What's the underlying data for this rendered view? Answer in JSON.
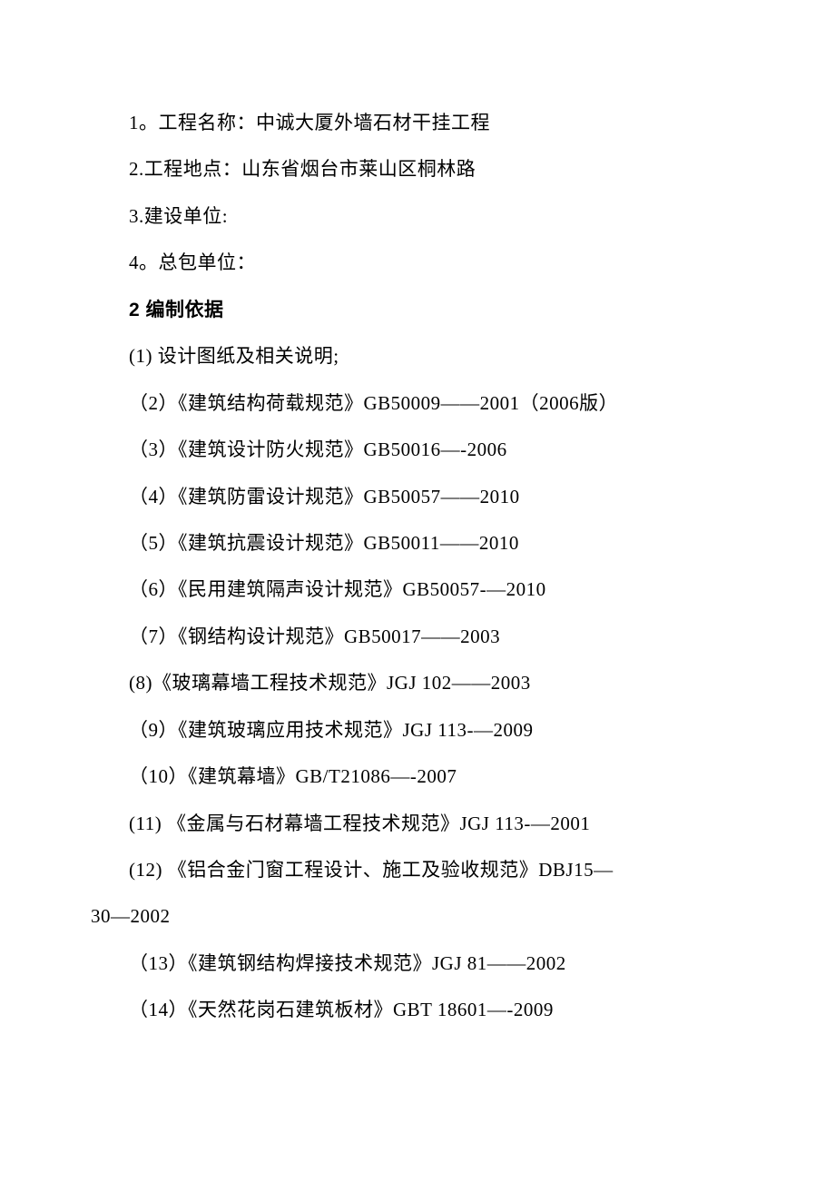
{
  "document": {
    "font_size": 21,
    "line_height": 2.45,
    "text_color": "#000000",
    "background_color": "#ffffff",
    "lines": [
      {
        "text": "1。工程名称：中诚大厦外墙石材干挂工程",
        "indent": true,
        "bold": false
      },
      {
        "text": "2.工程地点：山东省烟台市莱山区桐林路",
        "indent": true,
        "bold": false
      },
      {
        "text": "3.建设单位:",
        "indent": true,
        "bold": false
      },
      {
        "text": "4。总包单位：",
        "indent": true,
        "bold": false
      },
      {
        "text": "2 编制依据",
        "indent": true,
        "bold": true
      },
      {
        "text": "(1) 设计图纸及相关说明;",
        "indent": true,
        "bold": false
      },
      {
        "text": "（2）《建筑结构荷载规范》GB50009——2001（2006版）",
        "indent": true,
        "bold": false
      },
      {
        "text": "（3）《建筑设计防火规范》GB50016—-2006",
        "indent": true,
        "bold": false
      },
      {
        "text": "（4）《建筑防雷设计规范》GB50057——2010",
        "indent": true,
        "bold": false
      },
      {
        "text": "（5）《建筑抗震设计规范》GB50011——2010",
        "indent": true,
        "bold": false
      },
      {
        "text": "（6）《民用建筑隔声设计规范》GB50057-—2010",
        "indent": true,
        "bold": false
      },
      {
        "text": "（7）《钢结构设计规范》GB50017——2003",
        "indent": true,
        "bold": false
      },
      {
        "text": "(8)《玻璃幕墙工程技术规范》JGJ  102——2003",
        "indent": true,
        "bold": false
      },
      {
        "text": "（9）《建筑玻璃应用技术规范》JGJ  113-—2009",
        "indent": true,
        "bold": false
      },
      {
        "text": "（10）《建筑幕墙》GB/T21086—-2007",
        "indent": true,
        "bold": false
      },
      {
        "text": "(11) 《金属与石材幕墙工程技术规范》JGJ 113-—2001",
        "indent": true,
        "bold": false
      },
      {
        "text": "(12) 《铝合金门窗工程设计、施工及验收规范》DBJ15—",
        "indent": true,
        "bold": false
      },
      {
        "text": "30—2002",
        "indent": false,
        "bold": false
      },
      {
        "text": "（13）《建筑钢结构焊接技术规范》JGJ  81——2002",
        "indent": true,
        "bold": false
      },
      {
        "text": "（14）《天然花岗石建筑板材》GBT  18601—-2009",
        "indent": true,
        "bold": false
      }
    ]
  }
}
